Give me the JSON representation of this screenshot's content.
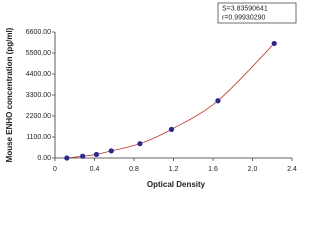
{
  "chart_data": {
    "type": "scatter",
    "y_label": "Mouse ENHO concentration (pg/ml)",
    "x_label": "Optical Density",
    "annotations": [
      "S=3.83590641",
      "r=0.99930290"
    ],
    "series": [
      {
        "color": "#2a2a8c",
        "x": [
          0.12,
          0.28,
          0.42,
          0.57,
          0.86,
          1.18,
          1.65,
          2.22
        ],
        "values": [
          0,
          93.75,
          187.5,
          375,
          750,
          1500,
          3000,
          6000
        ]
      }
    ],
    "line_color": "#c0392b",
    "xlim": [
      0,
      2.4
    ],
    "xticks": [
      0,
      0.4,
      0.8,
      1.2,
      1.6,
      {
        "value": 2,
        "label": "2.0"
      },
      2.4
    ],
    "ylim": [
      0,
      6600
    ],
    "yticks": [
      {
        "value": 0,
        "label": "0.00"
      },
      {
        "value": 1100,
        "label": "1100.00"
      },
      {
        "value": 2200,
        "label": "2200.00"
      },
      {
        "value": 3300,
        "label": "3300.00"
      },
      {
        "value": 4400,
        "label": "4400.00"
      },
      {
        "value": 5500,
        "label": "5500.00"
      },
      {
        "value": 6600,
        "label": "6600.00"
      }
    ]
  }
}
